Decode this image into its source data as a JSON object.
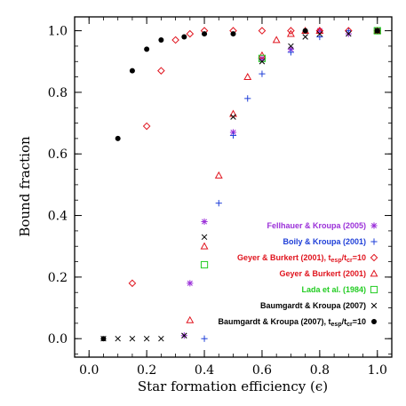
{
  "chart_data": {
    "type": "scatter",
    "xlabel": "Star formation efficiency (ϵ)",
    "ylabel": "Bound fraction",
    "xlim": [
      -0.05,
      1.05
    ],
    "ylim": [
      -0.06,
      1.045
    ],
    "xticks": [
      "0.0",
      "0.2",
      "0.4",
      "0.6",
      "0.8",
      "1.0"
    ],
    "yticks": [
      "0.0",
      "0.2",
      "0.4",
      "0.6",
      "0.8",
      "1.0"
    ],
    "grid": false,
    "legend_position": "lower-right",
    "series": [
      {
        "name": "Fellhauer & Kroupa (2005)",
        "name_html": "Fellhauer &amp; Kroupa (2005)",
        "marker": "asterisk",
        "color": "#9b30d9",
        "points": [
          [
            0.33,
            0.01
          ],
          [
            0.35,
            0.18
          ],
          [
            0.4,
            0.38
          ],
          [
            0.5,
            0.67
          ],
          [
            0.6,
            0.91
          ],
          [
            0.7,
            0.94
          ],
          [
            0.8,
            1.0
          ],
          [
            0.9,
            0.99
          ],
          [
            1.0,
            1.0
          ]
        ]
      },
      {
        "name": "Boily & Kroupa (2001)",
        "name_html": "Boily &amp; Kroupa (2001)",
        "marker": "plus",
        "color": "#1f3fd8",
        "points": [
          [
            0.4,
            0.0
          ],
          [
            0.45,
            0.44
          ],
          [
            0.5,
            0.66
          ],
          [
            0.55,
            0.78
          ],
          [
            0.6,
            0.86
          ],
          [
            0.7,
            0.93
          ],
          [
            0.8,
            0.98
          ],
          [
            0.9,
            1.0
          ],
          [
            1.0,
            1.0
          ]
        ]
      },
      {
        "name": "Geyer & Burkert (2001), t_esp/t_cr=10",
        "name_html": "Geyer &amp; Burkert (2001), t<tspan font-size=\"7\" dy=\"2\">esp</tspan><tspan dy=\"-2\">/t</tspan><tspan font-size=\"7\" dy=\"2\">cr</tspan><tspan dy=\"-2\">=10</tspan>",
        "marker": "diamond",
        "color": "#e0141e",
        "points": [
          [
            0.15,
            0.18
          ],
          [
            0.2,
            0.69
          ],
          [
            0.25,
            0.87
          ],
          [
            0.3,
            0.97
          ],
          [
            0.35,
            0.99
          ],
          [
            0.4,
            1.0
          ],
          [
            0.5,
            1.0
          ],
          [
            0.6,
            1.0
          ],
          [
            0.7,
            1.0
          ],
          [
            0.8,
            1.0
          ],
          [
            0.9,
            1.0
          ],
          [
            1.0,
            1.0
          ]
        ]
      },
      {
        "name": "Geyer & Burkert (2001)",
        "name_html": "Geyer &amp; Burkert (2001)",
        "marker": "triangle",
        "color": "#e0141e",
        "points": [
          [
            0.35,
            0.06
          ],
          [
            0.4,
            0.3
          ],
          [
            0.45,
            0.53
          ],
          [
            0.5,
            0.73
          ],
          [
            0.55,
            0.85
          ],
          [
            0.6,
            0.92
          ],
          [
            0.65,
            0.97
          ],
          [
            0.7,
            0.99
          ],
          [
            0.75,
            1.0
          ],
          [
            0.8,
            1.0
          ],
          [
            1.0,
            1.0
          ]
        ]
      },
      {
        "name": "Lada et al. (1984)",
        "name_html": "Lada et al. (1984)",
        "marker": "square",
        "color": "#22cc22",
        "points": [
          [
            0.4,
            0.24
          ],
          [
            0.6,
            0.91
          ],
          [
            1.0,
            1.0
          ]
        ]
      },
      {
        "name": "Baumgardt & Kroupa (2007)",
        "name_html": "Baumgardt &amp; Kroupa (2007)",
        "marker": "x",
        "color": "#000000",
        "points": [
          [
            0.05,
            0.0
          ],
          [
            0.1,
            0.0
          ],
          [
            0.15,
            0.0
          ],
          [
            0.2,
            0.0
          ],
          [
            0.25,
            0.0
          ],
          [
            0.33,
            0.01
          ],
          [
            0.4,
            0.33
          ],
          [
            0.5,
            0.72
          ],
          [
            0.6,
            0.9
          ],
          [
            0.7,
            0.95
          ],
          [
            0.75,
            0.98
          ],
          [
            0.8,
            0.99
          ],
          [
            0.9,
            0.99
          ],
          [
            1.0,
            1.0
          ]
        ]
      },
      {
        "name": "Baumgardt & Kroupa (2007), t_esp/t_cr=10",
        "name_html": "Baumgardt &amp; Kroupa (2007), t<tspan font-size=\"7\" dy=\"2\">esp</tspan><tspan dy=\"-2\">/t</tspan><tspan font-size=\"7\" dy=\"2\">cr</tspan><tspan dy=\"-2\">=10</tspan>",
        "marker": "dot",
        "color": "#000000",
        "points": [
          [
            0.05,
            0.0
          ],
          [
            0.1,
            0.65
          ],
          [
            0.15,
            0.87
          ],
          [
            0.2,
            0.94
          ],
          [
            0.25,
            0.97
          ],
          [
            0.33,
            0.98
          ],
          [
            0.4,
            0.99
          ],
          [
            0.5,
            0.99
          ],
          [
            0.75,
            1.0
          ],
          [
            1.0,
            1.0
          ]
        ]
      }
    ]
  }
}
